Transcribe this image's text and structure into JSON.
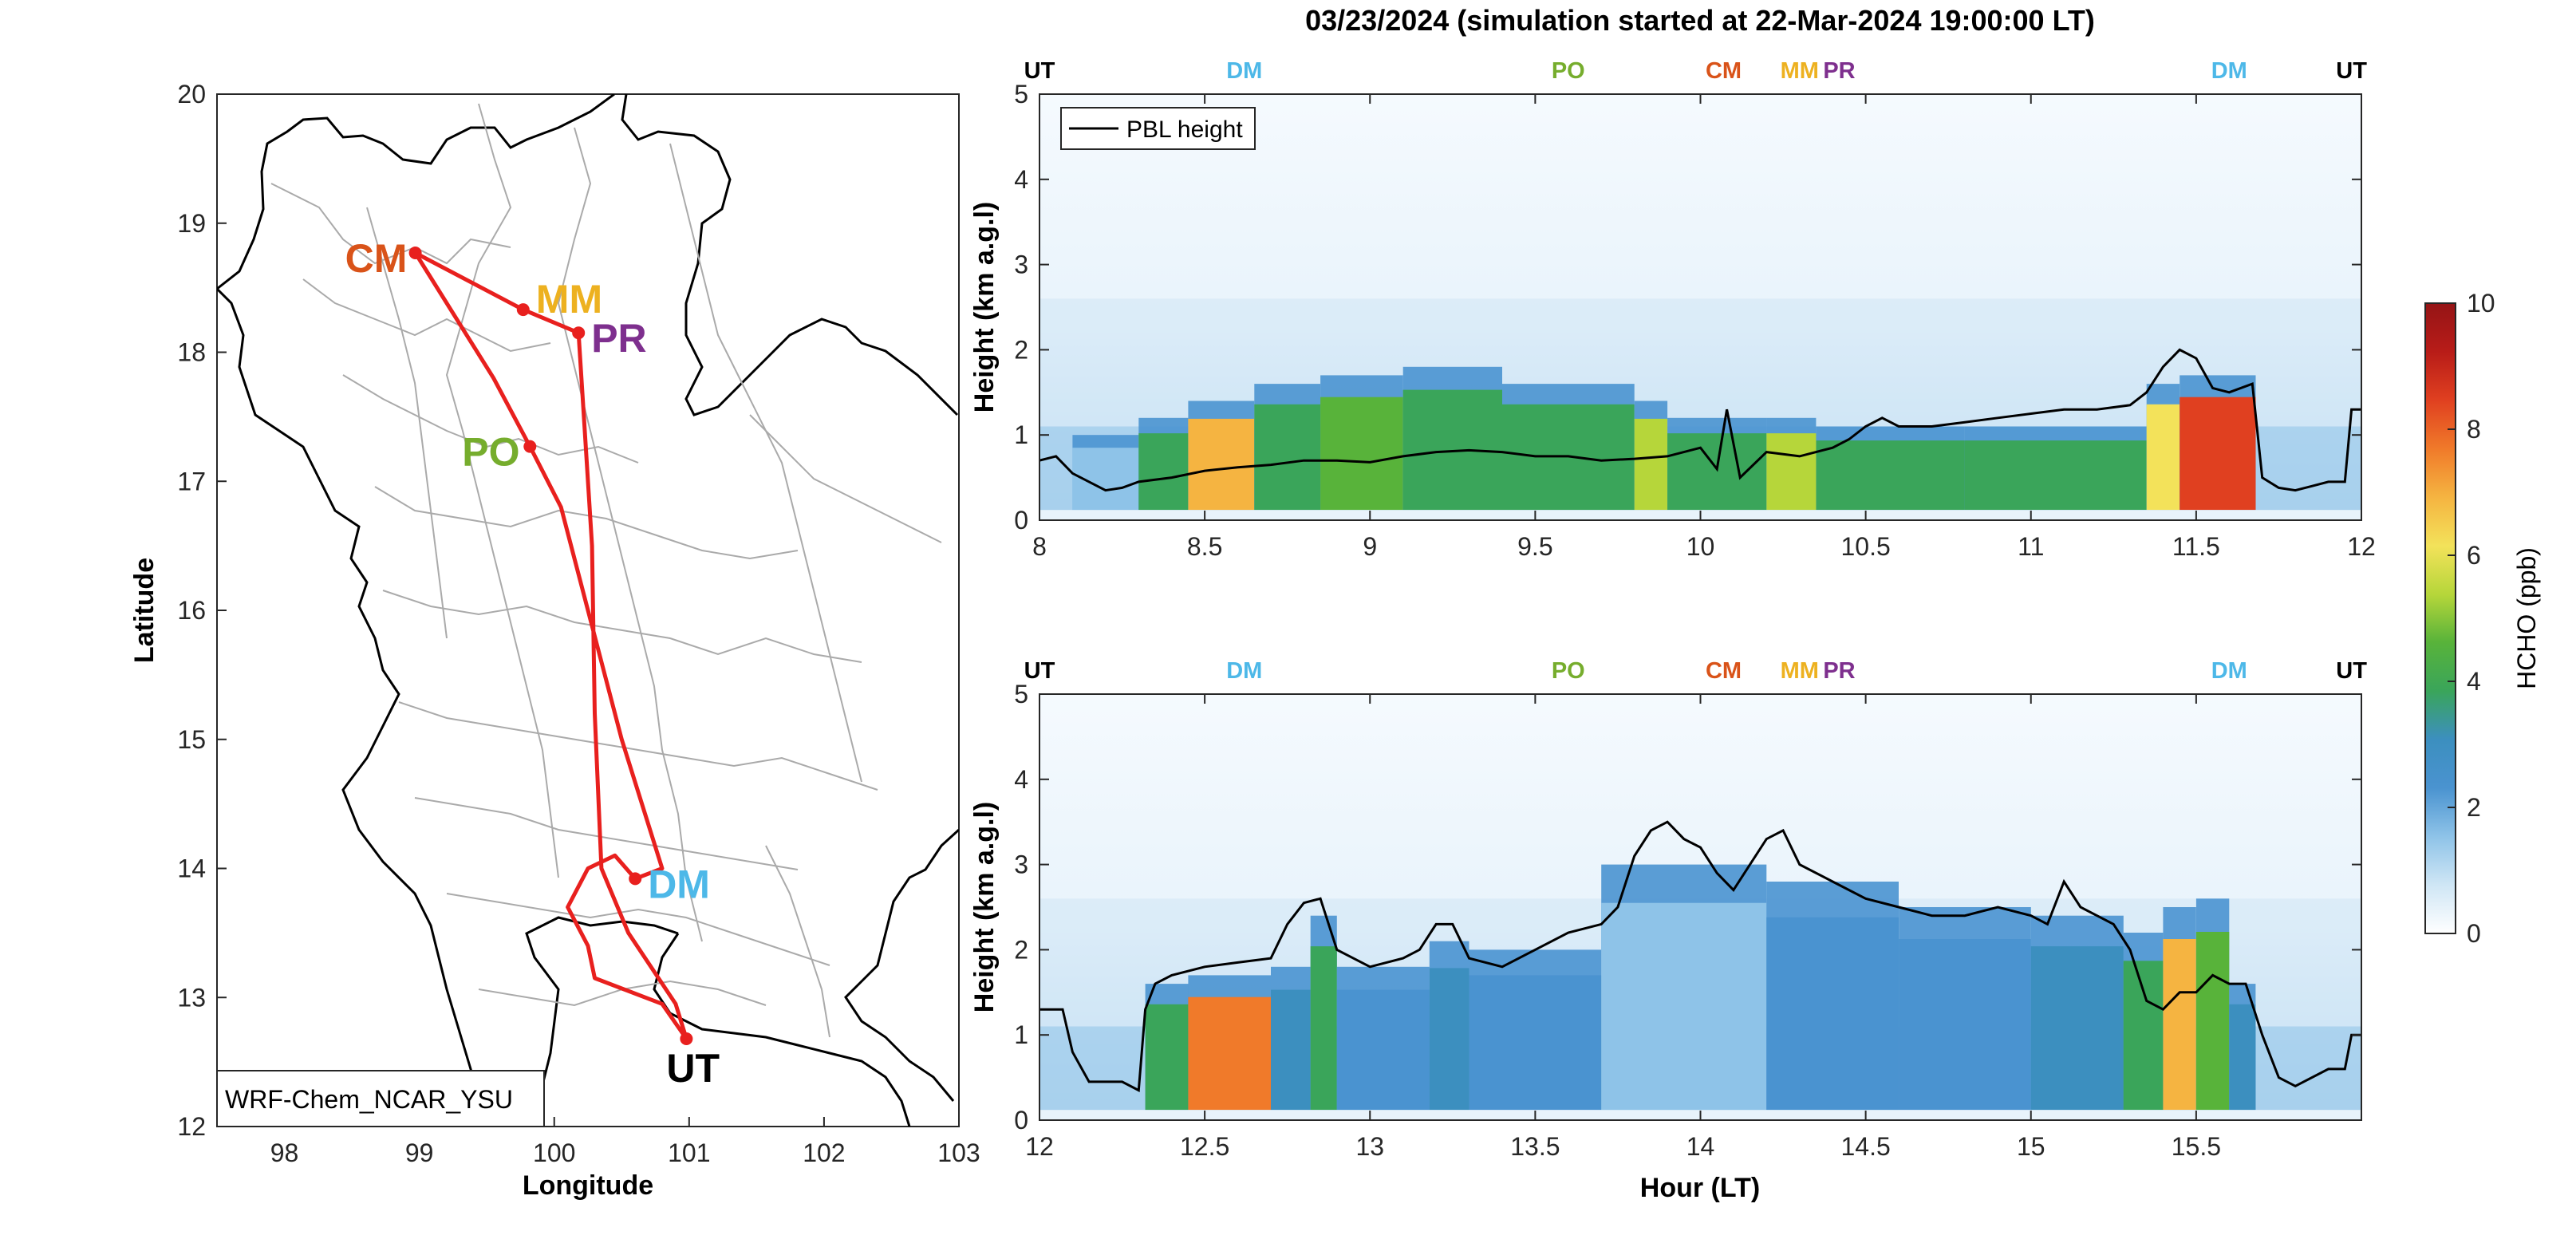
{
  "figure_title": "03/23/2024 (simulation started at 22-Mar-2024 19:00:00 LT)",
  "colors": {
    "route": "#e8201e",
    "pbl_line": "#000000",
    "UT": "#000000",
    "DM": "#4db8e8",
    "PO": "#76ad2d",
    "CM": "#d95319",
    "MM": "#edb120",
    "PR": "#7e2f8e",
    "colormap": [
      "#ffffff",
      "#cfe6f5",
      "#8ec3e8",
      "#4a93d0",
      "#3c8fbf",
      "#3aa55a",
      "#58b33a",
      "#b6d63a",
      "#f3e25a",
      "#f5b441",
      "#f07a2a",
      "#e04020",
      "#b81c18",
      "#951416"
    ]
  },
  "map": {
    "xlabel": "Longitude",
    "ylabel": "Latitude",
    "xticks": [
      "98",
      "99",
      "100",
      "101",
      "102",
      "103"
    ],
    "yticks": [
      "12",
      "13",
      "14",
      "15",
      "16",
      "17",
      "18",
      "19",
      "20"
    ],
    "xlim": [
      97.5,
      103
    ],
    "ylim": [
      12,
      20
    ],
    "legend_box": "WRF-Chem_NCAR_YSU",
    "sites": [
      {
        "code": "CM",
        "lon": 98.97,
        "lat": 18.77
      },
      {
        "code": "MM",
        "lon": 99.77,
        "lat": 18.33
      },
      {
        "code": "PR",
        "lon": 100.18,
        "lat": 18.15
      },
      {
        "code": "PO",
        "lon": 99.82,
        "lat": 17.27
      },
      {
        "code": "DM",
        "lon": 100.6,
        "lat": 13.92
      },
      {
        "code": "UT",
        "lon": 100.98,
        "lat": 12.68
      }
    ],
    "route": [
      [
        100.98,
        12.68
      ],
      [
        100.8,
        12.95
      ],
      [
        100.3,
        13.15
      ],
      [
        100.25,
        13.4
      ],
      [
        100.1,
        13.7
      ],
      [
        100.25,
        14.0
      ],
      [
        100.45,
        14.1
      ],
      [
        100.6,
        13.92
      ],
      [
        100.8,
        14.0
      ],
      [
        100.5,
        15.0
      ],
      [
        100.25,
        16.0
      ],
      [
        100.05,
        16.8
      ],
      [
        99.82,
        17.27
      ],
      [
        99.55,
        17.8
      ],
      [
        98.97,
        18.77
      ],
      [
        99.77,
        18.33
      ],
      [
        100.18,
        18.15
      ],
      [
        100.22,
        17.5
      ],
      [
        100.28,
        16.5
      ],
      [
        100.3,
        15.2
      ],
      [
        100.35,
        14.0
      ],
      [
        100.55,
        13.5
      ],
      [
        100.9,
        12.95
      ],
      [
        100.98,
        12.68
      ]
    ]
  },
  "panels": [
    {
      "ylabel": "Height (km a.g.l)",
      "xlim": [
        8,
        12
      ],
      "ylim": [
        0,
        5
      ],
      "xticks": [
        "8",
        "8.5",
        "9",
        "9.5",
        "10",
        "10.5",
        "11",
        "11.5",
        "12"
      ],
      "yticks": [
        "0",
        "1",
        "2",
        "3",
        "4",
        "5"
      ],
      "legend": "PBL height",
      "site_labels": [
        {
          "code": "UT",
          "hour": 8.0
        },
        {
          "code": "DM",
          "hour": 8.62
        },
        {
          "code": "PO",
          "hour": 9.6
        },
        {
          "code": "CM",
          "hour": 10.07
        },
        {
          "code": "MM",
          "hour": 10.3
        },
        {
          "code": "PR",
          "hour": 10.42
        },
        {
          "code": "DM",
          "hour": 11.6
        },
        {
          "code": "UT",
          "hour": 11.97
        }
      ],
      "pbl": [
        [
          8.0,
          0.7
        ],
        [
          8.05,
          0.75
        ],
        [
          8.1,
          0.55
        ],
        [
          8.15,
          0.45
        ],
        [
          8.2,
          0.35
        ],
        [
          8.25,
          0.38
        ],
        [
          8.3,
          0.45
        ],
        [
          8.4,
          0.5
        ],
        [
          8.5,
          0.58
        ],
        [
          8.6,
          0.62
        ],
        [
          8.7,
          0.65
        ],
        [
          8.8,
          0.7
        ],
        [
          8.9,
          0.7
        ],
        [
          9.0,
          0.68
        ],
        [
          9.1,
          0.75
        ],
        [
          9.2,
          0.8
        ],
        [
          9.3,
          0.82
        ],
        [
          9.4,
          0.8
        ],
        [
          9.5,
          0.75
        ],
        [
          9.6,
          0.75
        ],
        [
          9.7,
          0.7
        ],
        [
          9.8,
          0.72
        ],
        [
          9.9,
          0.75
        ],
        [
          10.0,
          0.85
        ],
        [
          10.05,
          0.6
        ],
        [
          10.08,
          1.3
        ],
        [
          10.12,
          0.5
        ],
        [
          10.2,
          0.8
        ],
        [
          10.3,
          0.75
        ],
        [
          10.4,
          0.85
        ],
        [
          10.45,
          0.95
        ],
        [
          10.5,
          1.1
        ],
        [
          10.55,
          1.2
        ],
        [
          10.6,
          1.1
        ],
        [
          10.7,
          1.1
        ],
        [
          10.8,
          1.15
        ],
        [
          10.9,
          1.2
        ],
        [
          11.0,
          1.25
        ],
        [
          11.1,
          1.3
        ],
        [
          11.2,
          1.3
        ],
        [
          11.3,
          1.35
        ],
        [
          11.35,
          1.5
        ],
        [
          11.4,
          1.8
        ],
        [
          11.45,
          2.0
        ],
        [
          11.5,
          1.9
        ],
        [
          11.55,
          1.55
        ],
        [
          11.6,
          1.5
        ],
        [
          11.67,
          1.6
        ],
        [
          11.7,
          0.5
        ],
        [
          11.75,
          0.38
        ],
        [
          11.8,
          0.35
        ],
        [
          11.85,
          0.4
        ],
        [
          11.9,
          0.45
        ],
        [
          11.95,
          0.45
        ],
        [
          11.97,
          1.3
        ],
        [
          12.0,
          1.3
        ]
      ],
      "hcho_columns": [
        [
          8.1,
          8.3,
          1.0,
          1.8
        ],
        [
          8.3,
          8.45,
          1.2,
          3.5
        ],
        [
          8.45,
          8.65,
          1.4,
          6.8
        ],
        [
          8.65,
          8.85,
          1.6,
          3.6
        ],
        [
          8.85,
          9.1,
          1.7,
          4.4
        ],
        [
          9.1,
          9.4,
          1.8,
          4.2
        ],
        [
          9.4,
          9.8,
          1.6,
          3.8
        ],
        [
          9.8,
          9.9,
          1.4,
          5.5
        ],
        [
          9.9,
          10.2,
          1.2,
          4.0
        ],
        [
          10.2,
          10.35,
          1.2,
          5.0
        ],
        [
          10.35,
          10.8,
          1.1,
          3.8
        ],
        [
          10.8,
          11.35,
          1.1,
          3.8
        ],
        [
          11.35,
          11.45,
          1.6,
          6.5
        ],
        [
          11.45,
          11.68,
          1.7,
          8.2
        ]
      ]
    },
    {
      "ylabel": "Height (km a.g.l)",
      "xlim": [
        12,
        16
      ],
      "ylim": [
        0,
        5
      ],
      "xticks": [
        "12",
        "12.5",
        "13",
        "13.5",
        "14",
        "14.5",
        "15",
        "15.5"
      ],
      "yticks": [
        "0",
        "1",
        "2",
        "3",
        "4",
        "5"
      ],
      "xlabel": "Hour (LT)",
      "site_labels": [
        {
          "code": "UT",
          "hour": 12.0
        },
        {
          "code": "DM",
          "hour": 12.62
        },
        {
          "code": "PO",
          "hour": 13.6
        },
        {
          "code": "CM",
          "hour": 14.07
        },
        {
          "code": "MM",
          "hour": 14.3
        },
        {
          "code": "PR",
          "hour": 14.42
        },
        {
          "code": "DM",
          "hour": 15.6
        },
        {
          "code": "UT",
          "hour": 15.97
        }
      ],
      "pbl": [
        [
          12.0,
          1.3
        ],
        [
          12.07,
          1.3
        ],
        [
          12.1,
          0.8
        ],
        [
          12.15,
          0.45
        ],
        [
          12.25,
          0.45
        ],
        [
          12.3,
          0.35
        ],
        [
          12.32,
          1.3
        ],
        [
          12.35,
          1.6
        ],
        [
          12.4,
          1.7
        ],
        [
          12.5,
          1.8
        ],
        [
          12.6,
          1.85
        ],
        [
          12.7,
          1.9
        ],
        [
          12.75,
          2.3
        ],
        [
          12.8,
          2.55
        ],
        [
          12.85,
          2.6
        ],
        [
          12.9,
          2.0
        ],
        [
          13.0,
          1.8
        ],
        [
          13.1,
          1.9
        ],
        [
          13.15,
          2.0
        ],
        [
          13.2,
          2.3
        ],
        [
          13.25,
          2.3
        ],
        [
          13.3,
          1.9
        ],
        [
          13.4,
          1.8
        ],
        [
          13.5,
          2.0
        ],
        [
          13.6,
          2.2
        ],
        [
          13.7,
          2.3
        ],
        [
          13.75,
          2.5
        ],
        [
          13.8,
          3.1
        ],
        [
          13.85,
          3.4
        ],
        [
          13.9,
          3.5
        ],
        [
          13.95,
          3.3
        ],
        [
          14.0,
          3.2
        ],
        [
          14.05,
          2.9
        ],
        [
          14.1,
          2.7
        ],
        [
          14.15,
          3.0
        ],
        [
          14.2,
          3.3
        ],
        [
          14.25,
          3.4
        ],
        [
          14.3,
          3.0
        ],
        [
          14.4,
          2.8
        ],
        [
          14.5,
          2.6
        ],
        [
          14.6,
          2.5
        ],
        [
          14.7,
          2.4
        ],
        [
          14.8,
          2.4
        ],
        [
          14.9,
          2.5
        ],
        [
          15.0,
          2.4
        ],
        [
          15.05,
          2.3
        ],
        [
          15.1,
          2.8
        ],
        [
          15.15,
          2.5
        ],
        [
          15.2,
          2.4
        ],
        [
          15.25,
          2.3
        ],
        [
          15.3,
          2.0
        ],
        [
          15.35,
          1.4
        ],
        [
          15.4,
          1.3
        ],
        [
          15.45,
          1.5
        ],
        [
          15.5,
          1.5
        ],
        [
          15.55,
          1.7
        ],
        [
          15.6,
          1.6
        ],
        [
          15.65,
          1.6
        ],
        [
          15.7,
          1.0
        ],
        [
          15.75,
          0.5
        ],
        [
          15.8,
          0.4
        ],
        [
          15.9,
          0.6
        ],
        [
          15.95,
          0.6
        ],
        [
          15.97,
          1.0
        ],
        [
          16.0,
          1.0
        ]
      ],
      "hcho_columns": [
        [
          12.32,
          12.45,
          1.6,
          4.2
        ],
        [
          12.45,
          12.7,
          1.7,
          7.5
        ],
        [
          12.7,
          12.82,
          1.8,
          3.0
        ],
        [
          12.82,
          12.9,
          2.4,
          4.2
        ],
        [
          12.9,
          13.18,
          1.8,
          2.6
        ],
        [
          13.18,
          13.3,
          2.1,
          3.4
        ],
        [
          13.3,
          13.7,
          2.0,
          2.4
        ],
        [
          13.7,
          14.2,
          3.0,
          1.9
        ],
        [
          14.2,
          14.6,
          2.8,
          2.4
        ],
        [
          14.6,
          15.0,
          2.5,
          2.2
        ],
        [
          15.0,
          15.28,
          2.4,
          2.7
        ],
        [
          15.28,
          15.4,
          2.2,
          4.2
        ],
        [
          15.4,
          15.5,
          2.5,
          6.8
        ],
        [
          15.5,
          15.6,
          2.6,
          4.8
        ],
        [
          15.6,
          15.68,
          1.6,
          3.2
        ]
      ]
    }
  ],
  "colorbar": {
    "label": "HCHO (ppb)",
    "ticks": [
      "0",
      "2",
      "4",
      "6",
      "8",
      "10"
    ],
    "range": [
      0,
      10
    ]
  }
}
